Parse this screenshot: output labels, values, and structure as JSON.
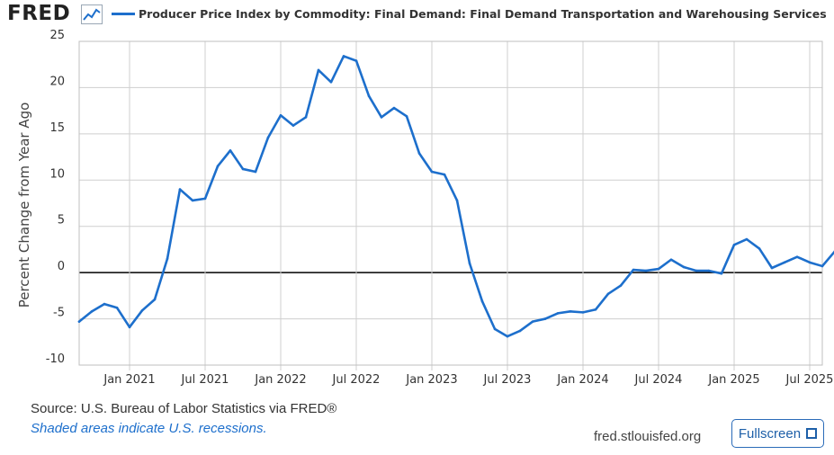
{
  "header": {
    "logo_text": "FRED",
    "title": "Producer Price Index by Commodity: Final Demand: Final Demand Transportation and Warehousing Services"
  },
  "footer": {
    "source": "Source: U.S. Bureau of Labor Statistics via FRED®",
    "recession_note": "Shaded areas indicate U.S. recessions.",
    "url": "fred.stlouisfed.org",
    "fullscreen_label": "Fullscreen"
  },
  "colors": {
    "series": "#1d6fcc",
    "zero_line": "#000000",
    "grid": "#cfcfcf"
  },
  "chart_data": {
    "type": "line",
    "ylabel": "Percent Change from Year Ago",
    "xlabel": "",
    "ylim": [
      -10,
      25
    ],
    "yticks": [
      25,
      20,
      15,
      10,
      5,
      0,
      -5,
      -10
    ],
    "xlim": [
      "2020-09",
      "2025-08"
    ],
    "xticks": [
      {
        "label": "Jan 2021",
        "date": "2021-01"
      },
      {
        "label": "Jul 2021",
        "date": "2021-07"
      },
      {
        "label": "Jan 2022",
        "date": "2022-01"
      },
      {
        "label": "Jul 2022",
        "date": "2022-07"
      },
      {
        "label": "Jan 2023",
        "date": "2023-01"
      },
      {
        "label": "Jul 2023",
        "date": "2023-07"
      },
      {
        "label": "Jan 2024",
        "date": "2024-01"
      },
      {
        "label": "Jul 2024",
        "date": "2024-07"
      },
      {
        "label": "Jan 2025",
        "date": "2025-01"
      },
      {
        "label": "Jul 2025",
        "date": "2025-07"
      }
    ],
    "grid": true,
    "series": [
      {
        "name": "Producer Price Index by Commodity: Final Demand: Final Demand Transportation and Warehousing Services",
        "points": [
          [
            "2020-09",
            -5.3
          ],
          [
            "2020-10",
            -4.2
          ],
          [
            "2020-11",
            -3.4
          ],
          [
            "2020-12",
            -3.8
          ],
          [
            "2021-01",
            -5.9
          ],
          [
            "2021-02",
            -4.1
          ],
          [
            "2021-03",
            -2.9
          ],
          [
            "2021-04",
            1.5
          ],
          [
            "2021-05",
            9.0
          ],
          [
            "2021-06",
            7.8
          ],
          [
            "2021-07",
            8.0
          ],
          [
            "2021-08",
            11.5
          ],
          [
            "2021-09",
            13.2
          ],
          [
            "2021-10",
            11.2
          ],
          [
            "2021-11",
            10.9
          ],
          [
            "2021-12",
            14.6
          ],
          [
            "2022-01",
            17.0
          ],
          [
            "2022-02",
            15.9
          ],
          [
            "2022-03",
            16.8
          ],
          [
            "2022-04",
            21.9
          ],
          [
            "2022-05",
            20.6
          ],
          [
            "2022-06",
            23.4
          ],
          [
            "2022-07",
            22.9
          ],
          [
            "2022-08",
            19.1
          ],
          [
            "2022-09",
            16.8
          ],
          [
            "2022-10",
            17.8
          ],
          [
            "2022-11",
            16.9
          ],
          [
            "2022-12",
            12.9
          ],
          [
            "2023-01",
            10.9
          ],
          [
            "2023-02",
            10.6
          ],
          [
            "2023-03",
            7.8
          ],
          [
            "2023-04",
            1.0
          ],
          [
            "2023-05",
            -3.1
          ],
          [
            "2023-06",
            -6.1
          ],
          [
            "2023-07",
            -6.9
          ],
          [
            "2023-08",
            -6.3
          ],
          [
            "2023-09",
            -5.3
          ],
          [
            "2023-10",
            -5.0
          ],
          [
            "2023-11",
            -4.4
          ],
          [
            "2023-12",
            -4.2
          ],
          [
            "2024-01",
            -4.3
          ],
          [
            "2024-02",
            -4.0
          ],
          [
            "2024-03",
            -2.3
          ],
          [
            "2024-04",
            -1.4
          ],
          [
            "2024-05",
            0.3
          ],
          [
            "2024-06",
            0.2
          ],
          [
            "2024-07",
            0.4
          ],
          [
            "2024-08",
            1.4
          ],
          [
            "2024-09",
            0.6
          ],
          [
            "2024-10",
            0.2
          ],
          [
            "2024-11",
            0.2
          ],
          [
            "2024-12",
            -0.1
          ],
          [
            "2025-01",
            3.0
          ],
          [
            "2025-02",
            3.6
          ],
          [
            "2025-03",
            2.6
          ],
          [
            "2025-04",
            0.5
          ],
          [
            "2025-05",
            1.1
          ],
          [
            "2025-06",
            1.7
          ],
          [
            "2025-07",
            1.1
          ],
          [
            "2025-08",
            0.7
          ],
          [
            "2025-09",
            2.3
          ]
        ]
      }
    ]
  }
}
